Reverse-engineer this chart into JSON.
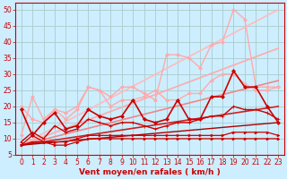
{
  "background_color": "#cceeff",
  "grid_color": "#aacccc",
  "xlabel": "Vent moyen/en rafales ( km/h )",
  "xlabel_color": "#cc0000",
  "xlabel_fontsize": 6.5,
  "tick_color": "#cc0000",
  "tick_fontsize": 5.5,
  "xlim": [
    -0.5,
    23.5
  ],
  "ylim": [
    5,
    52
  ],
  "yticks": [
    5,
    10,
    15,
    20,
    25,
    30,
    35,
    40,
    45,
    50
  ],
  "xticks": [
    0,
    1,
    2,
    3,
    4,
    5,
    6,
    7,
    8,
    9,
    10,
    11,
    12,
    13,
    14,
    15,
    16,
    17,
    18,
    19,
    20,
    21,
    22,
    23
  ],
  "series": [
    {
      "x": [
        0,
        23
      ],
      "y": [
        8,
        50
      ],
      "color": "#ffbbbb",
      "lw": 1.2,
      "marker": null,
      "ms": 0
    },
    {
      "x": [
        0,
        23
      ],
      "y": [
        8,
        38
      ],
      "color": "#ffaaaa",
      "lw": 1.2,
      "marker": null,
      "ms": 0
    },
    {
      "x": [
        0,
        23
      ],
      "y": [
        8,
        28
      ],
      "color": "#ee8888",
      "lw": 1.2,
      "marker": null,
      "ms": 0
    },
    {
      "x": [
        0,
        23
      ],
      "y": [
        8,
        20
      ],
      "color": "#cc2222",
      "lw": 1.2,
      "marker": null,
      "ms": 0
    },
    {
      "x": [
        0,
        23
      ],
      "y": [
        8,
        15
      ],
      "color": "#aa0000",
      "lw": 1.0,
      "marker": null,
      "ms": 0
    },
    {
      "x": [
        0,
        1,
        2,
        3,
        4,
        5,
        6,
        7,
        8,
        9,
        10,
        11,
        12,
        13,
        14,
        15,
        16,
        17,
        18,
        19,
        20,
        21,
        22,
        23
      ],
      "y": [
        11,
        23,
        16,
        19,
        18,
        20,
        26,
        25,
        23,
        26,
        26,
        24,
        22,
        36,
        36,
        35,
        32,
        39,
        40,
        50,
        47,
        26,
        26,
        26
      ],
      "color": "#ffaaaa",
      "lw": 1.0,
      "marker": "D",
      "ms": 2.0
    },
    {
      "x": [
        0,
        1,
        2,
        3,
        4,
        5,
        6,
        7,
        8,
        9,
        10,
        11,
        12,
        13,
        14,
        15,
        16,
        17,
        18,
        19,
        20,
        21,
        22,
        23
      ],
      "y": [
        20,
        16,
        15,
        19,
        16,
        19,
        26,
        25,
        20,
        22,
        22,
        23,
        25,
        22,
        22,
        24,
        24,
        28,
        30,
        30,
        27,
        25,
        25,
        26
      ],
      "color": "#ffaaaa",
      "lw": 1.0,
      "marker": "D",
      "ms": 2.0
    },
    {
      "x": [
        0,
        1,
        2,
        3,
        4,
        5,
        6,
        7,
        8,
        9,
        10,
        11,
        12,
        13,
        14,
        15,
        16,
        17,
        18,
        19,
        20,
        21,
        22,
        23
      ],
      "y": [
        19,
        11,
        15,
        18,
        13,
        14,
        19,
        17,
        16,
        17,
        22,
        16,
        15,
        16,
        22,
        16,
        16,
        23,
        23,
        31,
        26,
        26,
        20,
        15
      ],
      "color": "#cc0000",
      "lw": 1.2,
      "marker": "D",
      "ms": 2.0
    },
    {
      "x": [
        0,
        1,
        2,
        3,
        4,
        5,
        6,
        7,
        8,
        9,
        10,
        11,
        12,
        13,
        14,
        15,
        16,
        17,
        18,
        19,
        20,
        21,
        22,
        23
      ],
      "y": [
        9,
        12,
        10,
        14,
        12,
        13,
        16,
        15,
        14,
        15,
        15,
        14,
        13,
        14,
        15,
        15,
        16,
        17,
        17,
        20,
        19,
        19,
        18,
        16
      ],
      "color": "#cc0000",
      "lw": 1.0,
      "marker": "+",
      "ms": 3
    },
    {
      "x": [
        0,
        1,
        2,
        3,
        4,
        5,
        6,
        7,
        8,
        9,
        10,
        11,
        12,
        13,
        14,
        15,
        16,
        17,
        18,
        19,
        20,
        21,
        22,
        23
      ],
      "y": [
        8,
        11,
        9,
        9,
        9,
        10,
        11,
        11,
        11,
        11,
        11,
        11,
        11,
        11,
        11,
        11,
        11,
        11,
        11,
        12,
        12,
        12,
        12,
        11
      ],
      "color": "#cc0000",
      "lw": 0.9,
      "marker": ">",
      "ms": 2
    },
    {
      "x": [
        0,
        1,
        2,
        3,
        4,
        5,
        6,
        7,
        8,
        9,
        10,
        11,
        12,
        13,
        14,
        15,
        16,
        17,
        18,
        19,
        20,
        21,
        22,
        23
      ],
      "y": [
        8,
        9,
        9,
        8,
        8,
        9,
        10,
        10,
        10,
        10,
        10,
        10,
        10,
        10,
        10,
        10,
        10,
        10,
        10,
        10,
        10,
        10,
        10,
        10
      ],
      "color": "#cc0000",
      "lw": 0.9,
      "marker": ">",
      "ms": 2
    }
  ]
}
